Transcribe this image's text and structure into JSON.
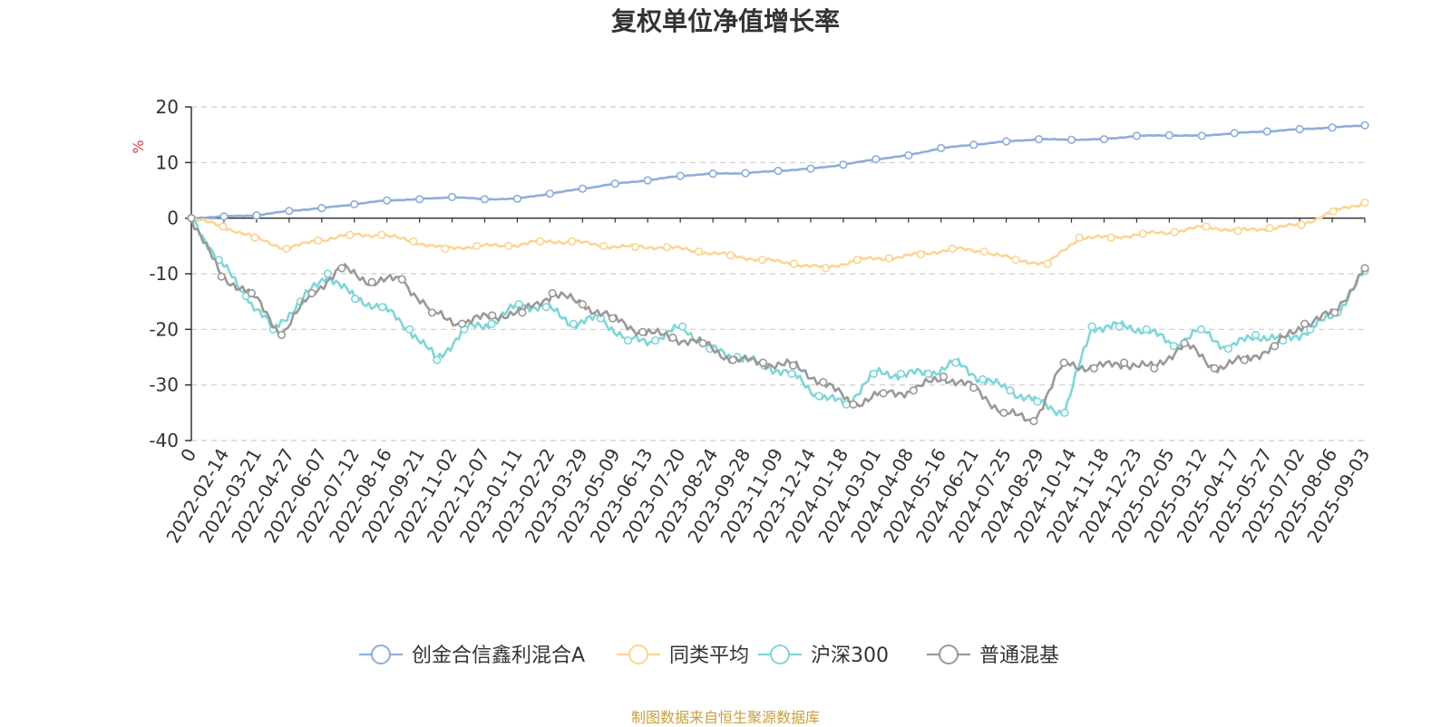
{
  "title": "复权单位净值增长率",
  "source_note": "制图数据来自恒生聚源数据库",
  "chart_data": {
    "type": "line",
    "title": "复权单位净值增长率",
    "ylabel": "%",
    "ylim": [
      -40,
      20
    ],
    "yticks": [
      20,
      10,
      0,
      -10,
      -20,
      -30,
      -40
    ],
    "grid": "dashed horizontal",
    "legend_position": "bottom",
    "x_start_label": "0",
    "x_tick_labels": [
      "2022-02-14",
      "2022-03-21",
      "2022-04-27",
      "2022-06-07",
      "2022-07-12",
      "2022-08-16",
      "2022-09-21",
      "2022-11-02",
      "2022-12-07",
      "2023-01-11",
      "2023-02-22",
      "2023-03-29",
      "2023-05-09",
      "2023-06-13",
      "2023-07-20",
      "2023-08-24",
      "2023-09-28",
      "2023-11-09",
      "2023-12-14",
      "2024-01-18",
      "2024-03-01",
      "2024-04-08",
      "2024-05-16",
      "2024-06-21",
      "2024-07-25",
      "2024-08-29",
      "2024-10-14",
      "2024-11-18",
      "2024-12-23",
      "2025-02-05",
      "2025-03-12",
      "2025-04-17",
      "2025-05-27",
      "2025-07-02",
      "2025-08-06",
      "2025-09-03"
    ],
    "series": [
      {
        "name": "创金合信鑫利混合A",
        "color": "#8eaed8",
        "values": [
          0,
          0.3,
          0.5,
          1.3,
          1.8,
          2.5,
          3.2,
          3.4,
          3.8,
          3.4,
          3.5,
          4.4,
          5.3,
          6.2,
          6.8,
          7.6,
          8.0,
          8.1,
          8.5,
          8.9,
          9.6,
          10.6,
          11.3,
          12.6,
          13.2,
          13.8,
          14.2,
          14.1,
          14.2,
          14.8,
          14.9,
          14.8,
          15.3,
          15.6,
          16.0,
          16.3,
          16.7
        ]
      },
      {
        "name": "同类平均",
        "color": "#fad594",
        "values": [
          0,
          -1.5,
          -3.5,
          -5.5,
          -4.0,
          -3.0,
          -3.0,
          -4.2,
          -5.5,
          -5.0,
          -5.0,
          -4.2,
          -4.2,
          -5.0,
          -5.2,
          -5.2,
          -6.0,
          -6.7,
          -7.5,
          -8.2,
          -9.0,
          -7.5,
          -7.2,
          -6.5,
          -5.5,
          -6.0,
          -7.5,
          -8.2,
          -3.5,
          -3.5,
          -2.8,
          -2.5,
          -1.5,
          -2.3,
          -1.8,
          -1.2,
          1.2,
          2.8
        ]
      },
      {
        "name": "沪深300",
        "color": "#7fd6d7",
        "values": [
          0,
          -7.5,
          -14.0,
          -20.0,
          -15.0,
          -10.0,
          -14.5,
          -16.0,
          -20.0,
          -25.5,
          -20.0,
          -19.0,
          -15.5,
          -16.0,
          -19.0,
          -18.0,
          -22.0,
          -22.0,
          -19.5,
          -23.5,
          -25.0,
          -26.5,
          -28.0,
          -32.0,
          -33.5,
          -28.0,
          -28.0,
          -28.0,
          -26.0,
          -29.0,
          -31.0,
          -33.0,
          -35.0,
          -19.5,
          -19.5,
          -20.0,
          -23.0,
          -20.0,
          -23.5,
          -21.0,
          -22.0,
          -20.0,
          -17.0,
          -9.5
        ]
      },
      {
        "name": "普通混基",
        "color": "#999999",
        "values": [
          0,
          -10.5,
          -13.5,
          -21.0,
          -13.5,
          -9.0,
          -11.5,
          -11.0,
          -17.0,
          -19.0,
          -17.5,
          -17.0,
          -13.5,
          -15.5,
          -18.0,
          -20.5,
          -21.5,
          -22.5,
          -25.5,
          -26.0,
          -26.5,
          -29.5,
          -33.5,
          -31.5,
          -31.0,
          -28.5,
          -30.5,
          -35.0,
          -36.5,
          -26.0,
          -27.0,
          -26.0,
          -27.0,
          -22.5,
          -27.0,
          -25.5,
          -23.0,
          -19.0,
          -17.0,
          -9.0
        ]
      }
    ]
  }
}
